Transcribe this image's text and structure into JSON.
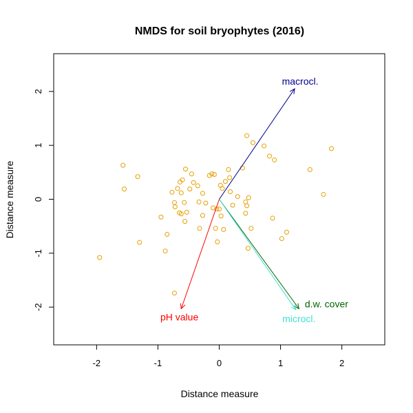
{
  "chart_data": {
    "type": "scatter",
    "title": "NMDS for soil bryophytes (2016)",
    "xlabel": "Distance measure",
    "ylabel": "Distance measure",
    "xlim": [
      -2.7,
      2.7
    ],
    "ylim": [
      -2.7,
      2.7
    ],
    "xticks": [
      -2,
      -1,
      0,
      1,
      2
    ],
    "yticks": [
      -2,
      -1,
      0,
      1,
      2
    ],
    "grid": false,
    "point_color": "#E69F00",
    "points": [
      {
        "x": -1.95,
        "y": -1.08
      },
      {
        "x": -1.57,
        "y": 0.63
      },
      {
        "x": -1.55,
        "y": 0.19
      },
      {
        "x": -1.33,
        "y": 0.42
      },
      {
        "x": -1.3,
        "y": -0.8
      },
      {
        "x": -0.95,
        "y": -0.33
      },
      {
        "x": -0.88,
        "y": -0.96
      },
      {
        "x": -0.85,
        "y": -0.65
      },
      {
        "x": -0.77,
        "y": 0.13
      },
      {
        "x": -0.73,
        "y": -0.06
      },
      {
        "x": -0.72,
        "y": -0.14
      },
      {
        "x": -0.73,
        "y": -1.74
      },
      {
        "x": -0.68,
        "y": 0.2
      },
      {
        "x": -0.65,
        "y": -0.25
      },
      {
        "x": -0.64,
        "y": 0.32
      },
      {
        "x": -0.62,
        "y": -0.27
      },
      {
        "x": -0.62,
        "y": 0.12
      },
      {
        "x": -0.6,
        "y": 0.36
      },
      {
        "x": -0.57,
        "y": -0.06
      },
      {
        "x": -0.56,
        "y": -0.41
      },
      {
        "x": -0.55,
        "y": 0.56
      },
      {
        "x": -0.53,
        "y": -0.24
      },
      {
        "x": -0.48,
        "y": 0.19
      },
      {
        "x": -0.45,
        "y": 0.47
      },
      {
        "x": -0.42,
        "y": 0.31
      },
      {
        "x": -0.35,
        "y": 0.25
      },
      {
        "x": -0.33,
        "y": -0.05
      },
      {
        "x": -0.32,
        "y": -0.54
      },
      {
        "x": -0.27,
        "y": -0.3
      },
      {
        "x": -0.27,
        "y": 0.11
      },
      {
        "x": -0.22,
        "y": -0.07
      },
      {
        "x": -0.16,
        "y": 0.44
      },
      {
        "x": -0.12,
        "y": 0.47
      },
      {
        "x": -0.1,
        "y": -0.16
      },
      {
        "x": -0.08,
        "y": 0.46
      },
      {
        "x": -0.06,
        "y": -0.54
      },
      {
        "x": -0.04,
        "y": -0.18
      },
      {
        "x": -0.03,
        "y": -0.79
      },
      {
        "x": 0.0,
        "y": -0.18
      },
      {
        "x": 0.02,
        "y": 0.26
      },
      {
        "x": 0.03,
        "y": -0.31
      },
      {
        "x": 0.05,
        "y": 0.2
      },
      {
        "x": 0.07,
        "y": -0.56
      },
      {
        "x": 0.1,
        "y": 0.33
      },
      {
        "x": 0.15,
        "y": 0.55
      },
      {
        "x": 0.17,
        "y": 0.4
      },
      {
        "x": 0.18,
        "y": 0.14
      },
      {
        "x": 0.22,
        "y": -0.11
      },
      {
        "x": 0.3,
        "y": 0.05
      },
      {
        "x": 0.38,
        "y": 0.58
      },
      {
        "x": 0.43,
        "y": -0.05
      },
      {
        "x": 0.43,
        "y": -0.26
      },
      {
        "x": 0.45,
        "y": -0.12
      },
      {
        "x": 0.45,
        "y": 1.18
      },
      {
        "x": 0.47,
        "y": -0.91
      },
      {
        "x": 0.48,
        "y": 0.03
      },
      {
        "x": 0.52,
        "y": -0.54
      },
      {
        "x": 0.55,
        "y": 1.05
      },
      {
        "x": 0.73,
        "y": 0.99
      },
      {
        "x": 0.82,
        "y": 0.8
      },
      {
        "x": 0.87,
        "y": -0.35
      },
      {
        "x": 0.9,
        "y": 0.73
      },
      {
        "x": 1.02,
        "y": -0.73
      },
      {
        "x": 1.1,
        "y": -0.61
      },
      {
        "x": 1.48,
        "y": 0.55
      },
      {
        "x": 1.7,
        "y": 0.09
      },
      {
        "x": 1.83,
        "y": 0.94
      }
    ],
    "vectors": [
      {
        "label": "macrocl.",
        "x": 1.23,
        "y": 2.05,
        "color": "#00008B",
        "label_x": 1.32,
        "label_y": 2.17
      },
      {
        "label": "d.w. cover",
        "x": 1.3,
        "y": -2.03,
        "color": "#006400",
        "label_x": 1.75,
        "label_y": -1.96
      },
      {
        "label": "microcl.",
        "x": 1.25,
        "y": -2.05,
        "color": "#40E0D0",
        "label_x": 1.3,
        "label_y": -2.23
      },
      {
        "label": "pH value",
        "x": -0.62,
        "y": -2.03,
        "color": "#FF0000",
        "label_x": -0.65,
        "label_y": -2.2
      }
    ]
  }
}
